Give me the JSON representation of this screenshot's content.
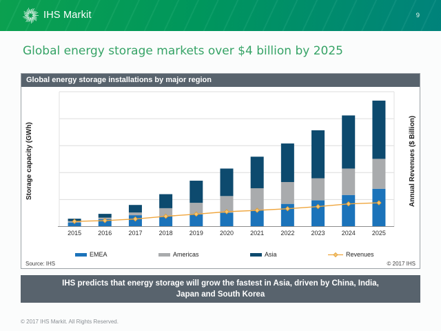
{
  "header": {
    "brand": "IHS Markit",
    "page_number": "9",
    "gradient_left": "#0ba351",
    "gradient_right": "#00857d"
  },
  "slide": {
    "title": "Global energy storage markets over $4 billion by 2025",
    "title_color": "#36a366",
    "footer": "© 2017 IHS Markit. All Rights Reserved."
  },
  "chart": {
    "header": "Global energy storage installations by major region",
    "ylabel_left": "Storage capacity (GWh)",
    "ylabel_right": "Annual Revenues ($ Billion)",
    "source": "Source: IHS",
    "copyright": "© 2017 IHS",
    "panel_color": "#58636d"
  },
  "callout": {
    "text": "IHS predicts that energy storage will grow the fastest in Asia, driven by China, India, Japan and South Korea"
  },
  "chart_data": {
    "type": "bar",
    "stacked": true,
    "title": "Global energy storage installations by major region",
    "categories": [
      "2015",
      "2016",
      "2017",
      "2018",
      "2019",
      "2020",
      "2021",
      "2022",
      "2023",
      "2024",
      "2025"
    ],
    "series": [
      {
        "name": "EMEA",
        "color": "#1b73ba",
        "values": [
          1.5,
          2.7,
          4.2,
          3.8,
          4.5,
          5.1,
          6.1,
          8.4,
          9.7,
          11.7,
          14.0
        ]
      },
      {
        "name": "Americas",
        "color": "#a9abad",
        "values": [
          0.5,
          0.6,
          1.0,
          3.0,
          4.3,
          6.2,
          8.1,
          8.1,
          8.2,
          9.8,
          11.1
        ]
      },
      {
        "name": "Asia",
        "color": "#0d4a6e",
        "values": [
          0.9,
          1.4,
          2.8,
          5.2,
          8.2,
          10.2,
          11.7,
          14.3,
          17.8,
          19.7,
          21.6
        ]
      }
    ],
    "line_series": {
      "name": "Revenues",
      "color": "#efa53c",
      "axis": "right",
      "values": [
        0.95,
        1.1,
        1.4,
        1.9,
        2.3,
        2.75,
        3.0,
        3.3,
        3.7,
        4.2,
        4.4
      ]
    },
    "left_axis": {
      "label": "Storage capacity (GWh)",
      "range": [
        0,
        50
      ],
      "ticks_labeled": false,
      "gridlines": 5
    },
    "right_axis": {
      "label": "Annual Revenues ($ Billion)",
      "range": [
        0,
        25
      ],
      "ticks_labeled": false
    },
    "legend_position": "bottom",
    "grid": true
  }
}
